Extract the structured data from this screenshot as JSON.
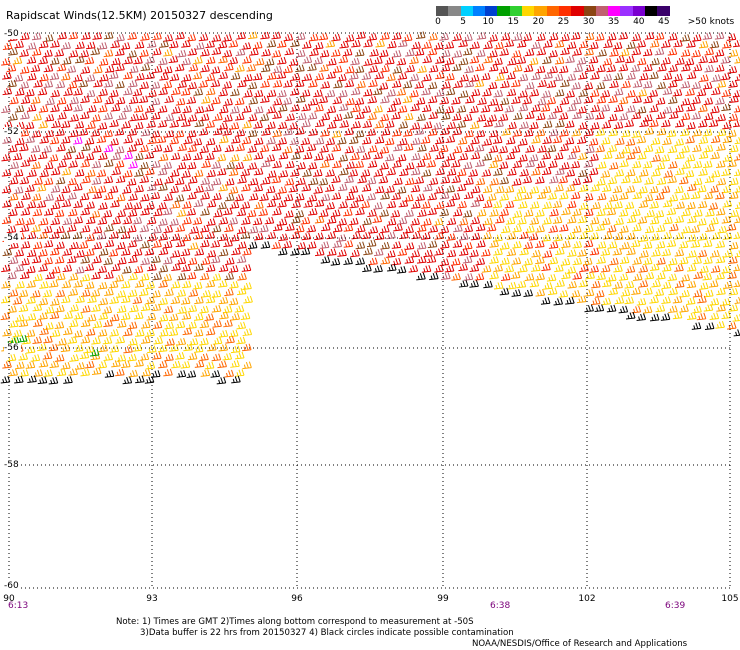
{
  "title": "Rapidscat Winds(12.5KM) 20150327 descending",
  "colorbar": {
    "colors": [
      "#555555",
      "#888888",
      "#00d0ff",
      "#0080ff",
      "#0040d0",
      "#00a000",
      "#30d030",
      "#ffd700",
      "#ffa500",
      "#ff6600",
      "#ff3000",
      "#e00000",
      "#8b4513",
      "#c06070",
      "#ff00ff",
      "#9b30ff",
      "#7b00d0",
      "#000000",
      "#3a006a"
    ],
    "labels": [
      "0",
      "5",
      "10",
      "15",
      "20",
      "25",
      "30",
      "35",
      "40",
      "45",
      ">50 knots"
    ],
    "label_values": [
      0,
      5,
      10,
      15,
      20,
      25,
      30,
      35,
      40,
      45,
      50
    ]
  },
  "axes": {
    "lat_labels": [
      "-50",
      "-52",
      "-54",
      "-56",
      "-58",
      "-60"
    ],
    "lon_labels": [
      "90",
      "93",
      "96",
      "99",
      "102",
      "105"
    ]
  },
  "times": [
    "6:13",
    "6:38",
    "6:39"
  ],
  "notes": {
    "line1": "Note: 1) Times are GMT  2)Times along bottom correspond to measurement at -50S",
    "line2": "3)Data buffer is 22 hrs from 20150327  4) Black circles indicate possible contamination"
  },
  "credit": "NOAA/NESDIS/Office of Research and Applications"
}
